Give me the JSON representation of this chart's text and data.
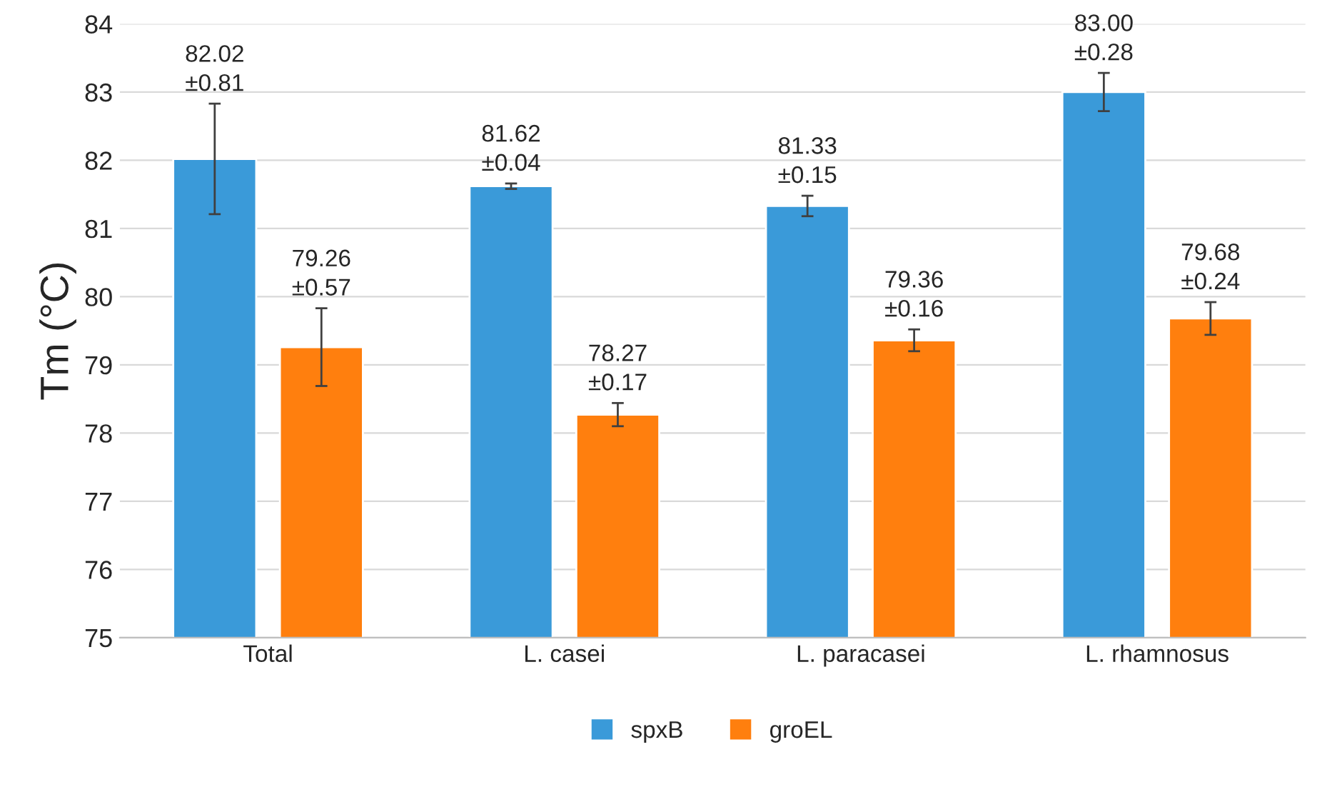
{
  "chart_data": {
    "type": "bar",
    "ylabel": "Tm (°C)",
    "categories": [
      "Total",
      "L. casei",
      "L. paracasei",
      "L. rhamnosus"
    ],
    "series": [
      {
        "name": "spxB",
        "color": "#3a9ad9",
        "values": [
          82.02,
          81.62,
          81.33,
          83.0
        ],
        "errors": [
          0.81,
          0.04,
          0.15,
          0.28
        ],
        "value_labels": [
          "82.02\n±0.81",
          "81.62\n±0.04",
          "81.33\n±0.15",
          "83.00\n±0.28"
        ]
      },
      {
        "name": "groEL",
        "color": "#ff7f0e",
        "values": [
          79.26,
          78.27,
          79.36,
          79.68
        ],
        "errors": [
          0.57,
          0.17,
          0.16,
          0.24
        ],
        "value_labels": [
          "79.26\n±0.57",
          "78.27\n±0.17",
          "79.36\n±0.16",
          "79.68\n±0.24"
        ]
      }
    ],
    "ylim": [
      75,
      84
    ],
    "yticks": [
      75,
      76,
      77,
      78,
      79,
      80,
      81,
      82,
      83,
      84
    ],
    "grid": "y",
    "legend": "bottom"
  }
}
